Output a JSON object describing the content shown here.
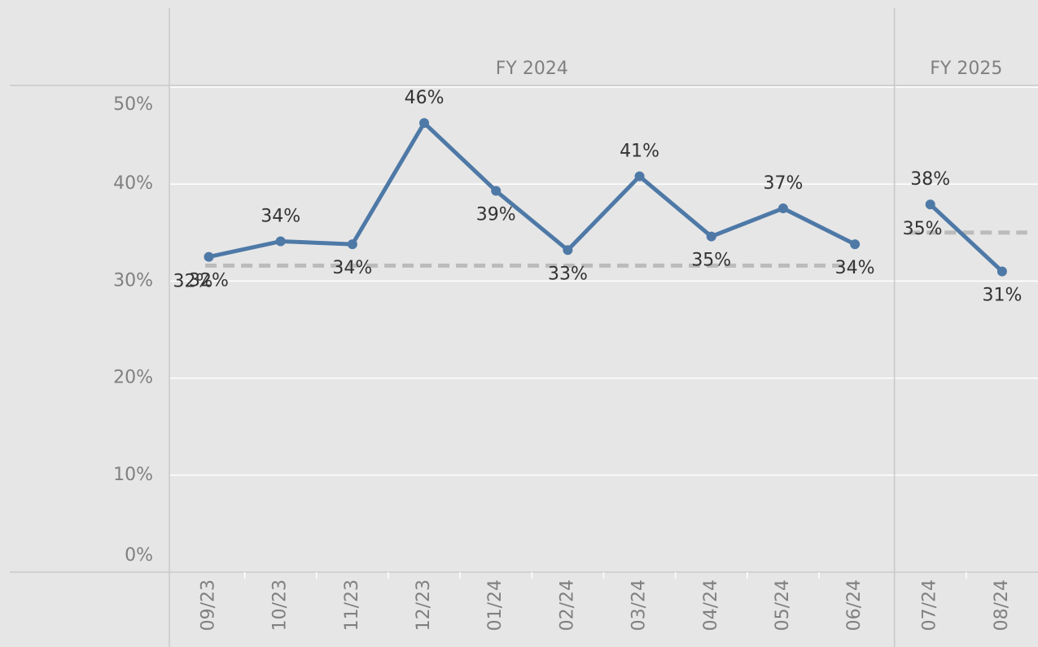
{
  "chart_data": {
    "type": "line",
    "color": "#4e79a7",
    "average_color": "#bbbbbb",
    "ylim": [
      0,
      50
    ],
    "yticks": [
      {
        "value": 0,
        "label": "0%"
      },
      {
        "value": 10,
        "label": "10%"
      },
      {
        "value": 20,
        "label": "20%"
      },
      {
        "value": 30,
        "label": "30%"
      },
      {
        "value": 40,
        "label": "40%"
      },
      {
        "value": 50,
        "label": "50%"
      }
    ],
    "grid": true,
    "panes": [
      {
        "name": "FY 2024",
        "categories": [
          "09/23",
          "10/23",
          "11/23",
          "12/23",
          "01/24",
          "02/24",
          "03/24",
          "04/24",
          "05/24",
          "06/24"
        ],
        "values": [
          32.5,
          34.1,
          33.8,
          46.3,
          39.3,
          33.2,
          40.8,
          34.6,
          37.5,
          33.8
        ],
        "value_labels": [
          "32%",
          "34%",
          "34%",
          "46%",
          "39%",
          "33%",
          "41%",
          "35%",
          "37%",
          "34%"
        ],
        "average": 31.6,
        "average_label": "32%"
      },
      {
        "name": "FY 2025",
        "categories": [
          "07/24",
          "08/24"
        ],
        "values": [
          37.9,
          31.0
        ],
        "value_labels": [
          "38%",
          "31%"
        ],
        "average": 35.0,
        "average_label": "35%"
      }
    ]
  }
}
